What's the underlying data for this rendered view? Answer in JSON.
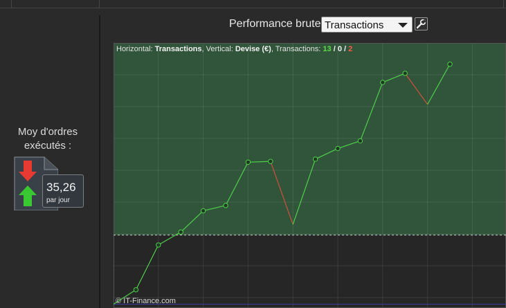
{
  "left_panel": {
    "title_line1": "Moy d'ordres",
    "title_line2": "exécutés :",
    "value": "35,26",
    "unit": "par jour",
    "icon": "buy-sell-arrows-icon"
  },
  "toolbar": {
    "label": "Performance brute",
    "select_value": "Transactions",
    "settings_icon": "wrench-icon"
  },
  "chart_header": {
    "horizontal_label": "Horizontal:",
    "horizontal_value": "Transactions",
    "vertical_label": "Vertical:",
    "vertical_value": "Devise (€)",
    "transactions_label": "Transactions:",
    "wins": "13",
    "flat": "0",
    "losses": "2",
    "separator": "/"
  },
  "copyright": "© IT-Finance.com",
  "colors": {
    "background": "#2a2a2a",
    "chart_profit_zone": "#31553a",
    "chart_loss_zone": "#262626",
    "rising_line": "#4ed04a",
    "falling_line": "#d0503c",
    "baseline": "#3a3aa0"
  },
  "chart_data": {
    "type": "line",
    "title": "",
    "xlabel": "Transactions",
    "ylabel": "Devise (€)",
    "grid": true,
    "x": [
      0,
      1,
      2,
      3,
      4,
      5,
      6,
      7,
      8,
      9,
      10,
      11,
      12,
      13,
      14,
      15
    ],
    "series": [
      {
        "values": [
          0,
          19,
          78,
          95,
          123,
          130,
          187,
          188,
          105,
          191,
          205,
          215,
          292,
          304,
          263,
          316
        ]
      }
    ],
    "markers_at": [
      1,
      2,
      3,
      4,
      5,
      6,
      7,
      9,
      10,
      11,
      12,
      13,
      15
    ],
    "threshold": 91,
    "ylim": [
      -5,
      344
    ],
    "xlim": [
      0,
      17.5
    ]
  }
}
